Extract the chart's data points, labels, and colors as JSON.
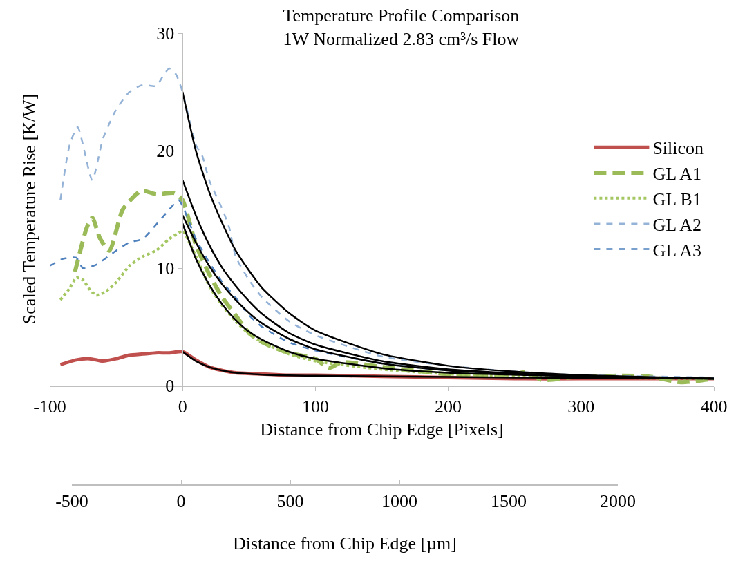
{
  "chart_data": {
    "type": "line",
    "title": "Temperature Profile Comparison\n1W Normalized 2.83 cm³/s Flow",
    "xlabel": "Distance from Chip Edge [Pixels]",
    "ylabel": "Scaled Temperature Rise [K/W]",
    "x2label": "Distance from Chip Edge [µm]",
    "xlim": [
      -100,
      400
    ],
    "xticks": [
      -100,
      0,
      100,
      200,
      300,
      400
    ],
    "ylim": [
      0,
      30
    ],
    "yticks": [
      0,
      10,
      20,
      30
    ],
    "x2lim": [
      -500,
      2000
    ],
    "x2ticks": [
      -500,
      0,
      500,
      1000,
      1500,
      2000
    ],
    "legend": "top right",
    "marker": "none",
    "series": [
      {
        "name": "Silicon",
        "color": "#c0504d",
        "line_style": "solid",
        "x": [
          -92,
          -80,
          -70,
          -60,
          -50,
          -40,
          -30,
          -20,
          -10,
          0,
          10,
          20,
          30,
          40,
          60,
          80,
          100,
          150,
          200,
          250,
          300,
          350,
          400
        ],
        "values": [
          1.8,
          2.2,
          2.3,
          2.1,
          2.3,
          2.6,
          2.7,
          2.8,
          2.8,
          2.9,
          2.2,
          1.6,
          1.3,
          1.1,
          1.0,
          0.9,
          0.9,
          0.8,
          0.7,
          0.6,
          0.6,
          0.6,
          0.6
        ]
      },
      {
        "name": "GL A1",
        "color": "#9bbb59",
        "line_style": "dashed",
        "x": [
          -81,
          -72,
          -68,
          -62,
          -55,
          -45,
          -31,
          -20,
          -6,
          0,
          10,
          20,
          30,
          40,
          50,
          60,
          80,
          100,
          110,
          120,
          150,
          200,
          250,
          260,
          270,
          300,
          350,
          375,
          400
        ],
        "values": [
          9.7,
          13.5,
          14.3,
          12.5,
          11.5,
          15.0,
          16.6,
          16.3,
          16.4,
          15.8,
          12.0,
          9.5,
          7.5,
          6.0,
          4.5,
          3.7,
          2.8,
          2.3,
          1.5,
          2.0,
          1.6,
          1.0,
          1.0,
          1.2,
          0.5,
          0.8,
          0.8,
          0.3,
          0.6
        ]
      },
      {
        "name": "GL B1",
        "color": "#a4c761",
        "line_style": "dotted",
        "x": [
          -92,
          -85,
          -80,
          -75,
          -70,
          -65,
          -58,
          -50,
          -40,
          -30,
          -20,
          -10,
          -3,
          0,
          10,
          20,
          30,
          40,
          50,
          60,
          80,
          100,
          150,
          200,
          250,
          300,
          400
        ],
        "values": [
          7.3,
          8.3,
          9.2,
          9.0,
          8.2,
          7.7,
          8.0,
          8.8,
          10.2,
          11.0,
          11.5,
          12.5,
          13.0,
          13.2,
          11.0,
          8.5,
          6.8,
          5.5,
          4.4,
          3.7,
          2.7,
          2.1,
          1.4,
          1.0,
          0.8,
          0.7,
          0.6
        ]
      },
      {
        "name": "GL A2",
        "color": "#95b3d7",
        "line_style": "dashed",
        "x": [
          -92,
          -85,
          -79,
          -68,
          -60,
          -50,
          -40,
          -30,
          -20,
          -15,
          -10,
          -5,
          0,
          10,
          15,
          20,
          30,
          35,
          40,
          50,
          60,
          80,
          100,
          150,
          200,
          250,
          300,
          350,
          400
        ],
        "values": [
          15.8,
          20.5,
          22.0,
          17.5,
          21.0,
          23.5,
          25.0,
          25.6,
          25.5,
          26.3,
          27.0,
          26.5,
          25.0,
          20.5,
          19.5,
          17.5,
          15.0,
          13.5,
          11.0,
          9.0,
          7.5,
          5.5,
          4.3,
          2.5,
          1.7,
          1.2,
          0.9,
          0.8,
          0.7
        ]
      },
      {
        "name": "GL A3",
        "color": "#4f81bd",
        "line_style": "dashed",
        "x": [
          -100,
          -90,
          -80,
          -75,
          -65,
          -50,
          -40,
          -30,
          -20,
          -10,
          -3,
          0,
          10,
          20,
          30,
          40,
          50,
          60,
          80,
          100,
          150,
          200,
          250,
          300,
          400
        ],
        "values": [
          10.2,
          10.8,
          10.9,
          10.0,
          10.3,
          11.5,
          12.2,
          12.5,
          13.7,
          15.0,
          15.8,
          15.3,
          12.5,
          10.5,
          8.8,
          7.5,
          6.0,
          5.0,
          3.7,
          3.0,
          1.9,
          1.3,
          1.0,
          0.8,
          0.6
        ]
      },
      {
        "color": "#000000",
        "line_style": "solid",
        "x": [
          0,
          10,
          20,
          30,
          40,
          50,
          60,
          80,
          100,
          150,
          200,
          250,
          300,
          400
        ],
        "values": [
          25.0,
          20.0,
          16.5,
          13.8,
          11.5,
          9.8,
          8.3,
          6.2,
          4.7,
          2.7,
          1.7,
          1.2,
          0.9,
          0.6
        ]
      },
      {
        "color": "#000000",
        "line_style": "solid",
        "x": [
          0,
          10,
          20,
          30,
          40,
          50,
          60,
          80,
          100,
          150,
          200,
          300,
          400
        ],
        "values": [
          17.5,
          14.5,
          12.0,
          10.0,
          8.5,
          7.2,
          6.1,
          4.5,
          3.5,
          2.1,
          1.4,
          0.8,
          0.6
        ]
      },
      {
        "color": "#000000",
        "line_style": "solid",
        "x": [
          0,
          10,
          20,
          30,
          40,
          50,
          60,
          80,
          100,
          150,
          200,
          300,
          400
        ],
        "values": [
          14.5,
          12.2,
          10.2,
          8.6,
          7.3,
          6.2,
          5.3,
          4.0,
          3.1,
          1.9,
          1.3,
          0.8,
          0.6
        ]
      },
      {
        "color": "#000000",
        "line_style": "solid",
        "x": [
          0,
          10,
          20,
          30,
          40,
          50,
          60,
          80,
          100,
          150,
          200,
          300,
          400
        ],
        "values": [
          13.8,
          10.8,
          8.6,
          6.9,
          5.6,
          4.6,
          3.9,
          2.9,
          2.3,
          1.5,
          1.1,
          0.8,
          0.6
        ]
      },
      {
        "color": "#000000",
        "line_style": "solid",
        "x": [
          0,
          10,
          20,
          30,
          40,
          60,
          100,
          200,
          300,
          400
        ],
        "values": [
          2.9,
          2.1,
          1.6,
          1.3,
          1.1,
          0.95,
          0.85,
          0.75,
          0.65,
          0.6
        ]
      }
    ]
  }
}
